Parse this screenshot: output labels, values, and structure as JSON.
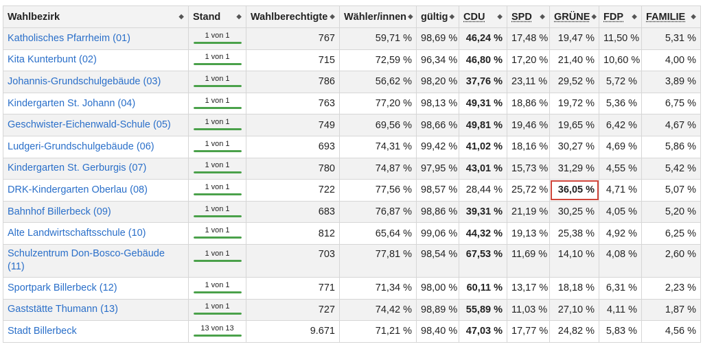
{
  "columns": [
    {
      "label": "Wahlbezirk",
      "name": "col-wahlbezirk",
      "party": false
    },
    {
      "label": "Stand",
      "name": "col-stand",
      "party": false
    },
    {
      "label": "Wahlberechtigte",
      "name": "col-wahlberechtigte",
      "party": false
    },
    {
      "label": "Wähler/innen",
      "name": "col-waehler",
      "party": false
    },
    {
      "label": "gültig",
      "name": "col-gueltig",
      "party": false
    },
    {
      "label": "CDU",
      "name": "col-cdu",
      "party": true
    },
    {
      "label": "SPD",
      "name": "col-spd",
      "party": true
    },
    {
      "label": "GRÜNE",
      "name": "col-gruene",
      "party": true
    },
    {
      "label": "FDP",
      "name": "col-fdp",
      "party": true
    },
    {
      "label": "FAMILIE",
      "name": "col-familie",
      "party": true
    }
  ],
  "sort_icon": "sort-updown-icon",
  "colors": {
    "link": "#2a6fc9",
    "progress": "#4aa14a",
    "highlight": "#d0453a"
  },
  "rows": [
    {
      "name": "Katholisches Pfarrheim (01)",
      "stand": "1 von 1",
      "progress": 1.0,
      "wahlberechtigte": "767",
      "waehler": "59,71 %",
      "gueltig": "98,69 %",
      "cdu": "46,24 %",
      "spd": "17,48 %",
      "gruene": "19,47 %",
      "fdp": "11,50 %",
      "familie": "5,31 %",
      "winner": "cdu"
    },
    {
      "name": "Kita Kunterbunt (02)",
      "stand": "1 von 1",
      "progress": 1.0,
      "wahlberechtigte": "715",
      "waehler": "72,59 %",
      "gueltig": "96,34 %",
      "cdu": "46,80 %",
      "spd": "17,20 %",
      "gruene": "21,40 %",
      "fdp": "10,60 %",
      "familie": "4,00 %",
      "winner": "cdu"
    },
    {
      "name": "Johannis-Grundschulgebäude (03)",
      "stand": "1 von 1",
      "progress": 1.0,
      "wahlberechtigte": "786",
      "waehler": "56,62 %",
      "gueltig": "98,20 %",
      "cdu": "37,76 %",
      "spd": "23,11 %",
      "gruene": "29,52 %",
      "fdp": "5,72 %",
      "familie": "3,89 %",
      "winner": "cdu"
    },
    {
      "name": "Kindergarten St. Johann (04)",
      "stand": "1 von 1",
      "progress": 1.0,
      "wahlberechtigte": "763",
      "waehler": "77,20 %",
      "gueltig": "98,13 %",
      "cdu": "49,31 %",
      "spd": "18,86 %",
      "gruene": "19,72 %",
      "fdp": "5,36 %",
      "familie": "6,75 %",
      "winner": "cdu"
    },
    {
      "name": "Geschwister-Eichenwald-Schule (05)",
      "stand": "1 von 1",
      "progress": 1.0,
      "wahlberechtigte": "749",
      "waehler": "69,56 %",
      "gueltig": "98,66 %",
      "cdu": "49,81 %",
      "spd": "19,46 %",
      "gruene": "19,65 %",
      "fdp": "6,42 %",
      "familie": "4,67 %",
      "winner": "cdu"
    },
    {
      "name": "Ludgeri-Grundschulgebäude (06)",
      "stand": "1 von 1",
      "progress": 1.0,
      "wahlberechtigte": "693",
      "waehler": "74,31 %",
      "gueltig": "99,42 %",
      "cdu": "41,02 %",
      "spd": "18,16 %",
      "gruene": "30,27 %",
      "fdp": "4,69 %",
      "familie": "5,86 %",
      "winner": "cdu"
    },
    {
      "name": "Kindergarten St. Gerburgis (07)",
      "stand": "1 von 1",
      "progress": 1.0,
      "wahlberechtigte": "780",
      "waehler": "74,87 %",
      "gueltig": "97,95 %",
      "cdu": "43,01 %",
      "spd": "15,73 %",
      "gruene": "31,29 %",
      "fdp": "4,55 %",
      "familie": "5,42 %",
      "winner": "cdu"
    },
    {
      "name": "DRK-Kindergarten Oberlau (08)",
      "stand": "1 von 1",
      "progress": 1.0,
      "wahlberechtigte": "722",
      "waehler": "77,56 %",
      "gueltig": "98,57 %",
      "cdu": "28,44 %",
      "spd": "25,72 %",
      "gruene": "36,05 %",
      "fdp": "4,71 %",
      "familie": "5,07 %",
      "winner": "gruene"
    },
    {
      "name": "Bahnhof Billerbeck (09)",
      "stand": "1 von 1",
      "progress": 1.0,
      "wahlberechtigte": "683",
      "waehler": "76,87 %",
      "gueltig": "98,86 %",
      "cdu": "39,31 %",
      "spd": "21,19 %",
      "gruene": "30,25 %",
      "fdp": "4,05 %",
      "familie": "5,20 %",
      "winner": "cdu"
    },
    {
      "name": "Alte Landwirtschaftsschule (10)",
      "stand": "1 von 1",
      "progress": 1.0,
      "wahlberechtigte": "812",
      "waehler": "65,64 %",
      "gueltig": "99,06 %",
      "cdu": "44,32 %",
      "spd": "19,13 %",
      "gruene": "25,38 %",
      "fdp": "4,92 %",
      "familie": "6,25 %",
      "winner": "cdu"
    },
    {
      "name": "Schulzentrum Don-Bosco-Gebäude (11)",
      "stand": "1 von 1",
      "progress": 1.0,
      "wahlberechtigte": "703",
      "waehler": "77,81 %",
      "gueltig": "98,54 %",
      "cdu": "67,53 %",
      "spd": "11,69 %",
      "gruene": "14,10 %",
      "fdp": "4,08 %",
      "familie": "2,60 %",
      "winner": "cdu"
    },
    {
      "name": "Sportpark Billerbeck (12)",
      "stand": "1 von 1",
      "progress": 1.0,
      "wahlberechtigte": "771",
      "waehler": "71,34 %",
      "gueltig": "98,00 %",
      "cdu": "60,11 %",
      "spd": "13,17 %",
      "gruene": "18,18 %",
      "fdp": "6,31 %",
      "familie": "2,23 %",
      "winner": "cdu"
    },
    {
      "name": "Gaststätte Thumann (13)",
      "stand": "1 von 1",
      "progress": 1.0,
      "wahlberechtigte": "727",
      "waehler": "74,42 %",
      "gueltig": "98,89 %",
      "cdu": "55,89 %",
      "spd": "11,03 %",
      "gruene": "27,10 %",
      "fdp": "4,11 %",
      "familie": "1,87 %",
      "winner": "cdu"
    },
    {
      "name": "Stadt Billerbeck",
      "stand": "13 von 13",
      "progress": 1.0,
      "wahlberechtigte": "9.671",
      "waehler": "71,21 %",
      "gueltig": "98,40 %",
      "cdu": "47,03 %",
      "spd": "17,77 %",
      "gruene": "24,82 %",
      "fdp": "5,83 %",
      "familie": "4,56 %",
      "winner": "cdu"
    }
  ]
}
